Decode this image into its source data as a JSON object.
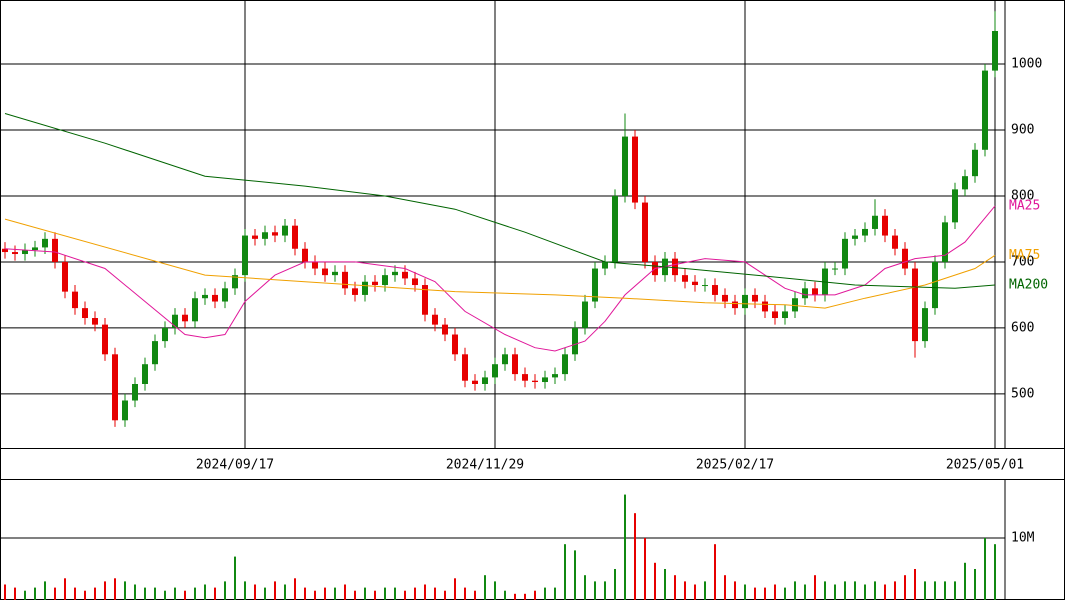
{
  "chart_data": [
    {
      "type": "candlestick",
      "xlim": [
        -0.5,
        100
      ],
      "ylim": [
        418,
        1097
      ],
      "yticks": [
        500,
        600,
        700,
        800,
        900,
        1000
      ],
      "xticks": [
        {
          "value": 24,
          "label": "2024/09/17"
        },
        {
          "value": 49,
          "label": "2024/11/29"
        },
        {
          "value": 74,
          "label": "2025/02/17"
        },
        {
          "value": 99,
          "label": "2025/05/01"
        }
      ],
      "up_color": "#118811",
      "down_color": "#e60000",
      "grid": true,
      "open": [
        720,
        715,
        712,
        718,
        722,
        735,
        700,
        655,
        630,
        615,
        605,
        560,
        460,
        490,
        515,
        545,
        580,
        600,
        620,
        610,
        645,
        650,
        640,
        660,
        680,
        740,
        735,
        745,
        740,
        755,
        720,
        700,
        690,
        680,
        685,
        660,
        650,
        670,
        665,
        680,
        685,
        675,
        665,
        620,
        605,
        590,
        560,
        520,
        515,
        525,
        545,
        560,
        530,
        520,
        518,
        525,
        530,
        560,
        600,
        640,
        690,
        700,
        800,
        890,
        790,
        700,
        680,
        705,
        680,
        670,
        665,
        665,
        650,
        640,
        630,
        650,
        640,
        625,
        615,
        625,
        645,
        660,
        650,
        690,
        690,
        735,
        740,
        750,
        770,
        740,
        720,
        690,
        580,
        630,
        700,
        760,
        810,
        830,
        870,
        990
      ],
      "high": [
        730,
        725,
        728,
        732,
        745,
        745,
        710,
        665,
        640,
        625,
        615,
        570,
        500,
        525,
        555,
        590,
        610,
        630,
        630,
        655,
        660,
        660,
        670,
        690,
        750,
        750,
        755,
        755,
        765,
        765,
        730,
        710,
        700,
        695,
        695,
        670,
        680,
        680,
        690,
        695,
        695,
        685,
        675,
        630,
        615,
        600,
        570,
        530,
        535,
        555,
        570,
        570,
        540,
        530,
        535,
        540,
        570,
        610,
        650,
        700,
        710,
        810,
        925,
        900,
        800,
        710,
        715,
        715,
        690,
        680,
        675,
        675,
        660,
        650,
        660,
        660,
        650,
        635,
        635,
        655,
        670,
        670,
        700,
        700,
        745,
        750,
        760,
        795,
        780,
        750,
        730,
        700,
        640,
        710,
        770,
        820,
        840,
        880,
        1000,
        1080
      ],
      "low": [
        705,
        702,
        702,
        708,
        712,
        690,
        645,
        620,
        605,
        595,
        550,
        450,
        450,
        480,
        505,
        535,
        570,
        590,
        600,
        600,
        635,
        630,
        630,
        650,
        670,
        725,
        725,
        730,
        730,
        710,
        690,
        680,
        670,
        670,
        650,
        640,
        640,
        655,
        655,
        670,
        665,
        655,
        610,
        595,
        580,
        550,
        510,
        505,
        505,
        515,
        535,
        520,
        510,
        508,
        508,
        515,
        520,
        550,
        590,
        630,
        680,
        690,
        790,
        780,
        690,
        670,
        670,
        670,
        660,
        655,
        655,
        640,
        630,
        620,
        620,
        630,
        615,
        605,
        605,
        615,
        635,
        640,
        640,
        680,
        680,
        725,
        730,
        740,
        730,
        710,
        680,
        555,
        570,
        620,
        690,
        750,
        800,
        820,
        860,
        980
      ],
      "close": [
        715,
        712,
        718,
        722,
        735,
        700,
        655,
        630,
        615,
        605,
        560,
        460,
        490,
        515,
        545,
        580,
        600,
        620,
        610,
        645,
        650,
        640,
        660,
        680,
        740,
        735,
        745,
        740,
        755,
        720,
        700,
        690,
        680,
        685,
        660,
        650,
        670,
        665,
        680,
        685,
        675,
        665,
        620,
        605,
        590,
        560,
        520,
        515,
        525,
        545,
        560,
        530,
        520,
        518,
        525,
        530,
        560,
        600,
        640,
        690,
        700,
        800,
        890,
        790,
        700,
        680,
        705,
        680,
        670,
        665,
        665,
        650,
        640,
        630,
        650,
        640,
        625,
        615,
        625,
        645,
        660,
        650,
        690,
        690,
        735,
        740,
        750,
        770,
        740,
        720,
        690,
        580,
        630,
        700,
        760,
        810,
        830,
        870,
        990,
        1050
      ],
      "series": [
        {
          "name": "MA25",
          "color": "#e0189a",
          "x": [
            0,
            5,
            10,
            14,
            18,
            20,
            22,
            24,
            27,
            30,
            35,
            40,
            43,
            46,
            50,
            53,
            55,
            58,
            60,
            62,
            65,
            70,
            74,
            78,
            80,
            83,
            86,
            88,
            91,
            94,
            96,
            99
          ],
          "values": [
            720,
            715,
            690,
            640,
            590,
            585,
            590,
            640,
            680,
            700,
            700,
            690,
            670,
            625,
            590,
            570,
            565,
            580,
            610,
            650,
            690,
            705,
            700,
            660,
            650,
            650,
            665,
            690,
            705,
            710,
            730,
            785
          ]
        },
        {
          "name": "MA75",
          "color": "#f0a000",
          "x": [
            0,
            20,
            30,
            45,
            55,
            62,
            70,
            78,
            82,
            86,
            92,
            97,
            99
          ],
          "values": [
            765,
            680,
            670,
            655,
            650,
            645,
            638,
            635,
            630,
            645,
            665,
            690,
            710
          ]
        },
        {
          "name": "MA200",
          "color": "#006400",
          "x": [
            0,
            10,
            20,
            30,
            38,
            45,
            52,
            60,
            68,
            75,
            85,
            95,
            99
          ],
          "values": [
            925,
            880,
            830,
            815,
            800,
            780,
            745,
            700,
            690,
            680,
            665,
            660,
            665
          ]
        }
      ]
    },
    {
      "type": "bar",
      "xlim": [
        -0.5,
        100
      ],
      "ylim": [
        0,
        19350000
      ],
      "yticks": [
        {
          "value": 10000000,
          "label": "10M"
        }
      ],
      "values": [
        2500000,
        2000000,
        1500000,
        2000000,
        3000000,
        2000000,
        3500000,
        2000000,
        1500000,
        2000000,
        3000000,
        3500000,
        3000000,
        2500000,
        2000000,
        2000000,
        1500000,
        2000000,
        1500000,
        2000000,
        2500000,
        2000000,
        3000000,
        7000000,
        3000000,
        2500000,
        2000000,
        3000000,
        2500000,
        3500000,
        2000000,
        1500000,
        2000000,
        2000000,
        2500000,
        1500000,
        2000000,
        1500000,
        2000000,
        2000000,
        1500000,
        2000000,
        2500000,
        2000000,
        1500000,
        3500000,
        2000000,
        1500000,
        4000000,
        3000000,
        1500000,
        1000000,
        1000000,
        1500000,
        2000000,
        2000000,
        9000000,
        8000000,
        4000000,
        3000000,
        3000000,
        5000000,
        17000000,
        14000000,
        10000000,
        6000000,
        5000000,
        4000000,
        3000000,
        2500000,
        3000000,
        9000000,
        4000000,
        3000000,
        2500000,
        2000000,
        2000000,
        2500000,
        2000000,
        3000000,
        2500000,
        4000000,
        3000000,
        2500000,
        3000000,
        3000000,
        2500000,
        3000000,
        2500000,
        3000000,
        4000000,
        5000000,
        3000000,
        3000000,
        3000000,
        3000000,
        6000000,
        5000000,
        10000000,
        9000000
      ]
    }
  ]
}
